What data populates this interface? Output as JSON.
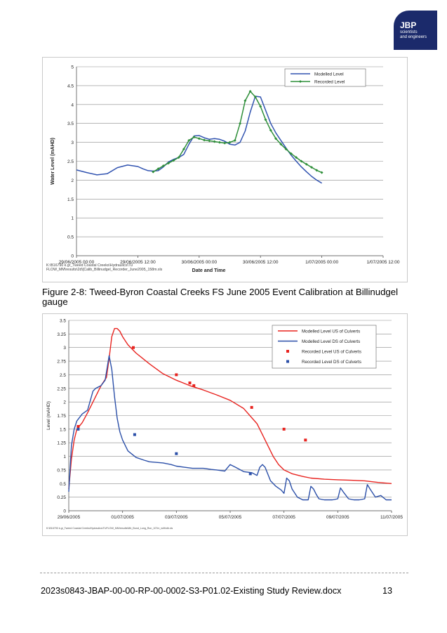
{
  "logo": {
    "line1": "JBP",
    "line2": "scientists",
    "line3": "and engineers"
  },
  "caption": "Figure 2-8: Tweed-Byron Coastal Creeks FS June 2005 Event Calibration at Billinudgel gauge",
  "footer": {
    "document_name": "2023s0843-JBAP-00-00-RP-00-0002-S3-P01.02-Existing Study Review.docx",
    "page_number": "13"
  },
  "chart_data": [
    {
      "type": "line",
      "title": "",
      "xlabel": "Date and Time",
      "ylabel": "Water Level (mAHD)",
      "ylim": [
        0,
        5
      ],
      "yticks": [
        "0",
        "0.5",
        "1",
        "1.5",
        "2",
        "2.5",
        "3",
        "3.5",
        "4",
        "4.5",
        "5"
      ],
      "xlim": [
        0,
        48
      ],
      "x_unit": "hours from 29/06/2005 00:00",
      "xticks": [
        {
          "x": 0,
          "label": "29/06/2005 00:00"
        },
        {
          "x": 12,
          "label": "29/06/2005 12:00"
        },
        {
          "x": 24,
          "label": "30/06/2005 00:00"
        },
        {
          "x": 36,
          "label": "30/06/2005 12:00"
        },
        {
          "x": 48,
          "label": "1/07/2005 00:00"
        },
        {
          "x": 60,
          "label": "1/07/2005 12:00"
        }
      ],
      "grid": true,
      "legend_position": "top-right",
      "footnote": "K:\\B16790 k.gr_Tweed Coastal Creeks\\Hydraulics\\TUFLOW_MM\\results\\2d\\[Calib_Billinudgel_Recorder_June2005_158m.xls",
      "series": [
        {
          "name": "Modelled Level",
          "color": "#3153b0",
          "marker": "none",
          "x": [
            0,
            2,
            4,
            6,
            8,
            10,
            12,
            13,
            14,
            15,
            16,
            17,
            18,
            19,
            20,
            21,
            22,
            23,
            24,
            25,
            26,
            27,
            28,
            29,
            30,
            31,
            32,
            33,
            34,
            35,
            36,
            37,
            38,
            39,
            40,
            41,
            42,
            43,
            44,
            45,
            46,
            47,
            48
          ],
          "y": [
            2.27,
            2.2,
            2.14,
            2.17,
            2.33,
            2.4,
            2.36,
            2.3,
            2.25,
            2.24,
            2.25,
            2.35,
            2.48,
            2.55,
            2.6,
            2.68,
            2.95,
            3.17,
            3.18,
            3.12,
            3.08,
            3.1,
            3.08,
            3.03,
            2.95,
            2.93,
            3.0,
            3.3,
            3.8,
            4.22,
            4.2,
            3.85,
            3.5,
            3.25,
            3.05,
            2.85,
            2.66,
            2.5,
            2.35,
            2.22,
            2.1,
            2.0,
            1.92
          ]
        },
        {
          "name": "Recorded Level",
          "color": "#2f8f3a",
          "marker": "diamond",
          "x": [
            15,
            16,
            17,
            18,
            19,
            20,
            21,
            22,
            23,
            24,
            25,
            26,
            27,
            28,
            29,
            30,
            31,
            32,
            33,
            34,
            35,
            36,
            37,
            38,
            39,
            40,
            41,
            42,
            43,
            44,
            45,
            46,
            47,
            48
          ],
          "y": [
            2.22,
            2.3,
            2.38,
            2.45,
            2.52,
            2.6,
            2.82,
            3.05,
            3.14,
            3.1,
            3.06,
            3.04,
            3.02,
            3.0,
            2.98,
            3.0,
            3.05,
            3.5,
            4.1,
            4.35,
            4.2,
            3.95,
            3.6,
            3.32,
            3.1,
            2.95,
            2.82,
            2.7,
            2.6,
            2.5,
            2.42,
            2.34,
            2.26,
            2.2
          ]
        }
      ]
    },
    {
      "type": "line",
      "title": "",
      "xlabel": "",
      "ylabel": "Level (mAHD)",
      "ylim": [
        0,
        3.5
      ],
      "yticks": [
        "0",
        "0.25",
        "0.5",
        "0.75",
        "1",
        "1.25",
        "1.5",
        "1.75",
        "2",
        "2.25",
        "2.5",
        "2.75",
        "3",
        "3.25",
        "3.5"
      ],
      "xlim": [
        "29/06/2005",
        "11/07/2005"
      ],
      "x_unit": "days from 29/06/2005",
      "xticks": [
        {
          "x": 0,
          "label": "29/06/2005"
        },
        {
          "x": 2,
          "label": "01/07/2005"
        },
        {
          "x": 4,
          "label": "03/07/2005"
        },
        {
          "x": 6,
          "label": "05/07/2005"
        },
        {
          "x": 8,
          "label": "07/07/2005"
        },
        {
          "x": 10,
          "label": "09/07/2005"
        },
        {
          "x": 12,
          "label": "11/07/2005"
        }
      ],
      "grid": true,
      "legend_position": "top-right",
      "footnote": "K:\\B16790 k.gr_Tweed Coastal Creeks\\Hydraulics\\TUFLOW_MM\\results\\Mb_Bund_Long_Run_107m_with\\db.xls",
      "series": [
        {
          "name": "Modelled Level US of Culverts",
          "color": "#e8231f",
          "marker": "none",
          "x": [
            0,
            0.1,
            0.2,
            0.3,
            0.5,
            0.7,
            1.0,
            1.2,
            1.4,
            1.5,
            1.6,
            1.7,
            1.8,
            1.9,
            2.0,
            2.2,
            2.5,
            3.0,
            3.5,
            4.0,
            4.5,
            5.0,
            5.5,
            6.0,
            6.5,
            7.0,
            7.3,
            7.6,
            7.8,
            8.0,
            8.3,
            8.7,
            9.0,
            9.5,
            10,
            10.5,
            11,
            11.5,
            12
          ],
          "y": [
            0.4,
            0.95,
            1.3,
            1.5,
            1.62,
            1.8,
            2.1,
            2.3,
            2.45,
            2.8,
            3.2,
            3.35,
            3.35,
            3.3,
            3.2,
            3.05,
            2.9,
            2.7,
            2.52,
            2.4,
            2.3,
            2.22,
            2.13,
            2.03,
            1.88,
            1.6,
            1.3,
            1.0,
            0.85,
            0.75,
            0.68,
            0.63,
            0.6,
            0.58,
            0.57,
            0.56,
            0.55,
            0.52,
            0.5
          ]
        },
        {
          "name": "Modelled Level DS of Culverts",
          "color": "#2b4fa8",
          "marker": "none",
          "x": [
            0,
            0.1,
            0.2,
            0.3,
            0.5,
            0.7,
            0.9,
            1.0,
            1.2,
            1.35,
            1.5,
            1.6,
            1.7,
            1.8,
            1.9,
            2.0,
            2.2,
            2.5,
            2.8,
            3.0,
            3.5,
            3.8,
            4.0,
            4.3,
            4.6,
            5.0,
            5.3,
            5.5,
            5.8,
            6.0,
            6.2,
            6.5,
            6.8,
            7.0,
            7.1,
            7.2,
            7.3,
            7.5,
            7.7,
            7.9,
            8.0,
            8.1,
            8.2,
            8.3,
            8.5,
            8.7,
            8.9,
            9.0,
            9.1,
            9.2,
            9.3,
            9.5,
            9.8,
            10.0,
            10.1,
            10.2,
            10.4,
            10.6,
            10.8,
            11.0,
            11.1,
            11.2,
            11.4,
            11.6,
            11.8,
            12
          ],
          "y": [
            0.35,
            1.2,
            1.5,
            1.65,
            1.78,
            1.85,
            2.2,
            2.25,
            2.3,
            2.4,
            2.85,
            2.6,
            2.1,
            1.7,
            1.45,
            1.3,
            1.1,
            0.98,
            0.93,
            0.9,
            0.88,
            0.85,
            0.82,
            0.8,
            0.78,
            0.78,
            0.76,
            0.75,
            0.73,
            0.85,
            0.8,
            0.72,
            0.7,
            0.65,
            0.8,
            0.85,
            0.8,
            0.55,
            0.45,
            0.38,
            0.32,
            0.6,
            0.55,
            0.4,
            0.25,
            0.2,
            0.2,
            0.45,
            0.4,
            0.3,
            0.22,
            0.2,
            0.2,
            0.22,
            0.42,
            0.35,
            0.22,
            0.2,
            0.2,
            0.22,
            0.48,
            0.4,
            0.25,
            0.28,
            0.2,
            0.2
          ]
        },
        {
          "name": "Recorded Level US of Culverts",
          "color": "#e8231f",
          "marker": "square",
          "x": [
            0.35,
            2.4,
            4.0,
            4.5,
            4.65,
            6.8,
            8.0,
            8.8
          ],
          "y": [
            1.55,
            3.0,
            2.5,
            2.35,
            2.3,
            1.9,
            1.5,
            1.3
          ]
        },
        {
          "name": "Recorded Level DS of Culverts",
          "color": "#2b4fa8",
          "marker": "square",
          "x": [
            0.35,
            2.45,
            4.0,
            6.75
          ],
          "y": [
            1.5,
            1.4,
            1.05,
            0.68
          ]
        }
      ]
    }
  ]
}
